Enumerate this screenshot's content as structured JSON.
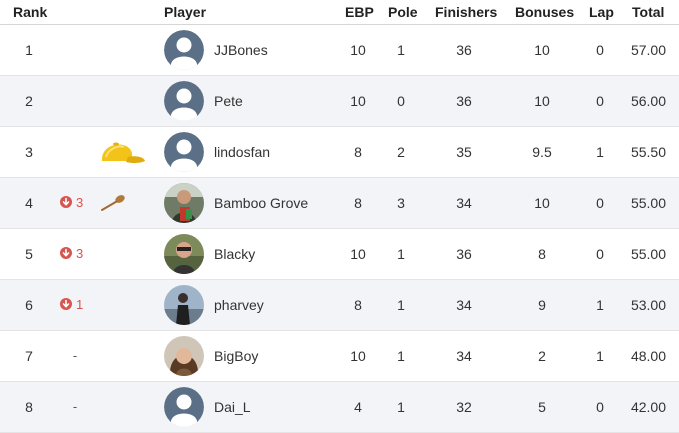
{
  "headers": {
    "rank": "Rank",
    "player": "Player",
    "ebp": "EBP",
    "pole": "Pole",
    "finishers": "Finishers",
    "bonuses": "Bonuses",
    "lap": "Lap",
    "total": "Total"
  },
  "rows": [
    {
      "rank": "1",
      "change": "",
      "player": "JJBones",
      "ebp": "10",
      "pole": "1",
      "finishers": "36",
      "bonuses": "10",
      "lap": "0",
      "total": "57.00"
    },
    {
      "rank": "2",
      "change": "",
      "player": "Pete",
      "ebp": "10",
      "pole": "0",
      "finishers": "36",
      "bonuses": "10",
      "lap": "0",
      "total": "56.00"
    },
    {
      "rank": "3",
      "change": "",
      "player": "lindosfan",
      "ebp": "8",
      "pole": "2",
      "finishers": "35",
      "bonuses": "9.5",
      "lap": "1",
      "total": "55.50"
    },
    {
      "rank": "4",
      "change": "3",
      "player": "Bamboo Grove",
      "ebp": "8",
      "pole": "3",
      "finishers": "34",
      "bonuses": "10",
      "lap": "0",
      "total": "55.00"
    },
    {
      "rank": "5",
      "change": "3",
      "player": "Blacky",
      "ebp": "10",
      "pole": "1",
      "finishers": "36",
      "bonuses": "8",
      "lap": "0",
      "total": "55.00"
    },
    {
      "rank": "6",
      "change": "1",
      "player": "pharvey",
      "ebp": "8",
      "pole": "1",
      "finishers": "34",
      "bonuses": "9",
      "lap": "1",
      "total": "53.00"
    },
    {
      "rank": "7",
      "change": "-",
      "player": "BigBoy",
      "ebp": "10",
      "pole": "1",
      "finishers": "34",
      "bonuses": "2",
      "lap": "1",
      "total": "48.00"
    },
    {
      "rank": "8",
      "change": "-",
      "player": "Dai_L",
      "ebp": "4",
      "pole": "1",
      "finishers": "32",
      "bonuses": "5",
      "lap": "0",
      "total": "42.00"
    }
  ],
  "icons": {
    "change_down": "down-arrow-circle-icon",
    "award_cap": "yellow-cap-icon",
    "award_spoon": "wooden-spoon-icon",
    "avatar_default": "default-avatar-icon"
  },
  "colors": {
    "header_text": "#222222",
    "row_alt": "#f2f4f7",
    "down": "#d9534f",
    "avatar_default": "#5b7086",
    "cap": "#f2c318",
    "spoon": "#b07a3c"
  }
}
